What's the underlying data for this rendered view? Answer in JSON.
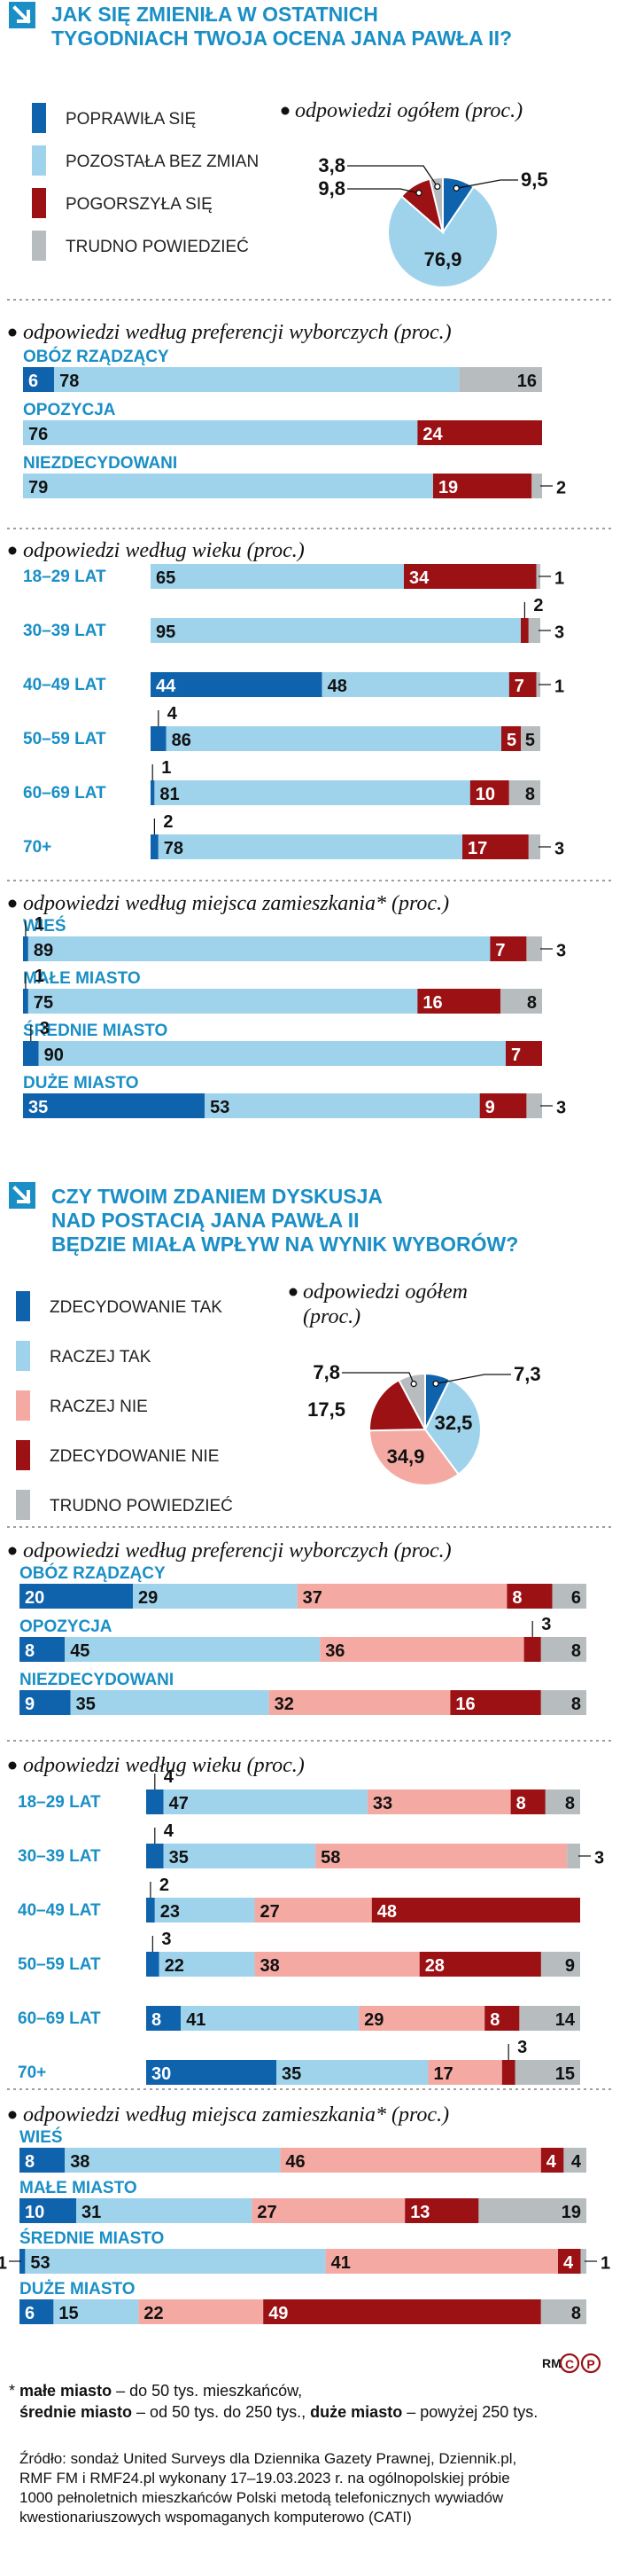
{
  "colors": {
    "blue_dark": "#0f62ac",
    "blue_light": "#9fd3ec",
    "red_dark": "#9b1114",
    "pink": "#f4aaa3",
    "grey": "#b7bcbf",
    "heading": "#1a8fc6"
  },
  "icon": "arrow-down-right-icon",
  "survey1": {
    "title": [
      "JAK SIĘ ZMIENIŁA W OSTATNICH",
      "TYGODNIACH TWOJA OCENA JANA PAWŁA II?"
    ],
    "legend": [
      "POPRAWIŁA SIĘ",
      "POZOSTAŁA BEZ ZMIAN",
      "POGORSZYŁA SIĘ",
      "TRUDNO POWIEDZIEĆ"
    ],
    "pie_title": "odpowiedzi ogółem (proc.)",
    "sections": [
      {
        "title": "odpowiedzi według preferencji wyborczych (proc.)"
      },
      {
        "title": "odpowiedzi według wieku (proc.)"
      },
      {
        "title": "odpowiedzi według miejsca zamieszkania* (proc.)"
      }
    ]
  },
  "survey2": {
    "title": [
      "CZY TWOIM ZDANIEM DYSKUSJA",
      "NAD POSTACIĄ JANA PAWŁA II",
      "BĘDZIE MIAŁA WPŁYW NA WYNIK WYBORÓW?"
    ],
    "legend": [
      "ZDECYDOWANIE TAK",
      "RACZEJ TAK",
      "RACZEJ NIE",
      "ZDECYDOWANIE NIE",
      "TRUDNO POWIEDZIEĆ"
    ],
    "pie_title": [
      "odpowiedzi ogółem",
      "(proc.)"
    ],
    "sections": [
      {
        "title": "odpowiedzi według preferencji wyborczych (proc.)"
      },
      {
        "title": "odpowiedzi według wieku (proc.)"
      },
      {
        "title": "odpowiedzi według miejsca zamieszkania* (proc.)"
      }
    ]
  },
  "chart_data": [
    {
      "type": "pie",
      "title": "odpowiedzi ogółem (proc.)",
      "categories": [
        "POPRAWIŁA SIĘ",
        "POZOSTAŁA BEZ ZMIAN",
        "POGORSZYŁA SIĘ",
        "TRUDNO POWIEDZIEĆ"
      ],
      "values": [
        9.5,
        76.9,
        9.8,
        3.8
      ],
      "labels": [
        "9,5",
        "76,9",
        "9,8",
        "3,8"
      ]
    },
    {
      "type": "bar",
      "stacked": true,
      "title": "odpowiedzi według preferencji wyborczych (proc.)",
      "categories": [
        "OBÓZ RZĄDZĄCY",
        "OPOZYCJA",
        "NIEZDECYDOWANI"
      ],
      "series": [
        {
          "name": "POPRAWIŁA SIĘ",
          "values": [
            6,
            0,
            0
          ]
        },
        {
          "name": "POZOSTAŁA BEZ ZMIAN",
          "values": [
            78,
            76,
            79
          ]
        },
        {
          "name": "POGORSZYŁA SIĘ",
          "values": [
            0,
            24,
            19
          ]
        },
        {
          "name": "TRUDNO POWIEDZIEĆ",
          "values": [
            16,
            0,
            2
          ]
        }
      ]
    },
    {
      "type": "bar",
      "stacked": true,
      "title": "odpowiedzi według wieku (proc.)",
      "categories": [
        "18–29 LAT",
        "30–39 LAT",
        "40–49 LAT",
        "50–59 LAT",
        "60–69 LAT",
        "70+"
      ],
      "series": [
        {
          "name": "POPRAWIŁA SIĘ",
          "values": [
            0,
            0,
            44,
            4,
            1,
            2
          ]
        },
        {
          "name": "POZOSTAŁA BEZ ZMIAN",
          "values": [
            65,
            95,
            48,
            86,
            81,
            78
          ]
        },
        {
          "name": "POGORSZYŁA SIĘ",
          "values": [
            34,
            2,
            7,
            5,
            10,
            17
          ]
        },
        {
          "name": "TRUDNO POWIEDZIEĆ",
          "values": [
            1,
            3,
            1,
            5,
            8,
            3
          ]
        }
      ]
    },
    {
      "type": "bar",
      "stacked": true,
      "title": "odpowiedzi według miejsca zamieszkania* (proc.)",
      "categories": [
        "WIEŚ",
        "MAŁE MIASTO",
        "ŚREDNIE MIASTO",
        "DUŻE MIASTO"
      ],
      "series": [
        {
          "name": "POPRAWIŁA SIĘ",
          "values": [
            1,
            1,
            3,
            35
          ]
        },
        {
          "name": "POZOSTAŁA BEZ ZMIAN",
          "values": [
            89,
            75,
            90,
            53
          ]
        },
        {
          "name": "POGORSZYŁA SIĘ",
          "values": [
            7,
            16,
            7,
            9
          ]
        },
        {
          "name": "TRUDNO POWIEDZIEĆ",
          "values": [
            3,
            8,
            0,
            3
          ]
        }
      ]
    },
    {
      "type": "pie",
      "title": "odpowiedzi ogółem (proc.)",
      "categories": [
        "ZDECYDOWANIE TAK",
        "RACZEJ TAK",
        "RACZEJ NIE",
        "ZDECYDOWANIE NIE",
        "TRUDNO POWIEDZIEĆ"
      ],
      "values": [
        7.3,
        32.5,
        34.9,
        17.5,
        7.8
      ],
      "labels": [
        "7,3",
        "32,5",
        "34,9",
        "17,5",
        "7,8"
      ]
    },
    {
      "type": "bar",
      "stacked": true,
      "title": "odpowiedzi według preferencji wyborczych (proc.)",
      "categories": [
        "OBÓZ RZĄDZĄCY",
        "OPOZYCJA",
        "NIEZDECYDOWANI"
      ],
      "series": [
        {
          "name": "ZDECYDOWANIE TAK",
          "values": [
            20,
            8,
            9
          ]
        },
        {
          "name": "RACZEJ TAK",
          "values": [
            29,
            45,
            35
          ]
        },
        {
          "name": "RACZEJ NIE",
          "values": [
            37,
            36,
            32
          ]
        },
        {
          "name": "ZDECYDOWANIE NIE",
          "values": [
            8,
            3,
            16
          ]
        },
        {
          "name": "TRUDNO POWIEDZIEĆ",
          "values": [
            6,
            8,
            8
          ]
        }
      ]
    },
    {
      "type": "bar",
      "stacked": true,
      "title": "odpowiedzi według wieku (proc.)",
      "categories": [
        "18–29 LAT",
        "30–39 LAT",
        "40–49 LAT",
        "50–59 LAT",
        "60–69 LAT",
        "70+"
      ],
      "series": [
        {
          "name": "ZDECYDOWANIE TAK",
          "values": [
            4,
            4,
            2,
            3,
            8,
            30
          ]
        },
        {
          "name": "RACZEJ TAK",
          "values": [
            47,
            35,
            23,
            22,
            41,
            35
          ]
        },
        {
          "name": "RACZEJ NIE",
          "values": [
            33,
            58,
            27,
            38,
            29,
            17
          ]
        },
        {
          "name": "ZDECYDOWANIE NIE",
          "values": [
            8,
            0,
            48,
            28,
            8,
            3
          ]
        },
        {
          "name": "TRUDNO POWIEDZIEĆ",
          "values": [
            8,
            3,
            0,
            9,
            14,
            15
          ]
        }
      ]
    },
    {
      "type": "bar",
      "stacked": true,
      "title": "odpowiedzi według miejsca zamieszkania* (proc.)",
      "categories": [
        "WIEŚ",
        "MAŁE MIASTO",
        "ŚREDNIE MIASTO",
        "DUŻE MIASTO"
      ],
      "series": [
        {
          "name": "ZDECYDOWANIE TAK",
          "values": [
            8,
            10,
            1,
            6
          ]
        },
        {
          "name": "RACZEJ TAK",
          "values": [
            38,
            31,
            53,
            15
          ]
        },
        {
          "name": "RACZEJ NIE",
          "values": [
            46,
            27,
            41,
            22
          ]
        },
        {
          "name": "ZDECYDOWANIE NIE",
          "values": [
            4,
            13,
            4,
            49
          ]
        },
        {
          "name": "TRUDNO POWIEDZIEĆ",
          "values": [
            4,
            19,
            1,
            8
          ]
        }
      ]
    }
  ],
  "footnote": {
    "parts": [
      {
        "t": "* ",
        "b": false
      },
      {
        "t": "małe miasto",
        "b": true
      },
      {
        "t": " – do 50 tys. mieszkańców,",
        "b": false
      }
    ],
    "parts2": [
      {
        "t": "średnie miasto",
        "b": true
      },
      {
        "t": " – od 50 tys. do 250 tys., ",
        "b": false
      },
      {
        "t": "duże miasto",
        "b": true
      },
      {
        "t": " – powyżej 250 tys.",
        "b": false
      }
    ]
  },
  "source": [
    "Źródło: sondaż United Surveys dla Dziennika Gazety Prawnej, Dziennik.pl,",
    "RMF FM i RMF24.pl wykonany 17–19.03.2023 r. na ogólnopolskiej próbie",
    "1000 pełnoletnich mieszkańców Polski metodą telefonicznych wywiadów",
    "kwestionariuszowych wspomaganych komputerowo (CATI)"
  ],
  "credit": "RM",
  "copyright": [
    "C",
    "P"
  ]
}
